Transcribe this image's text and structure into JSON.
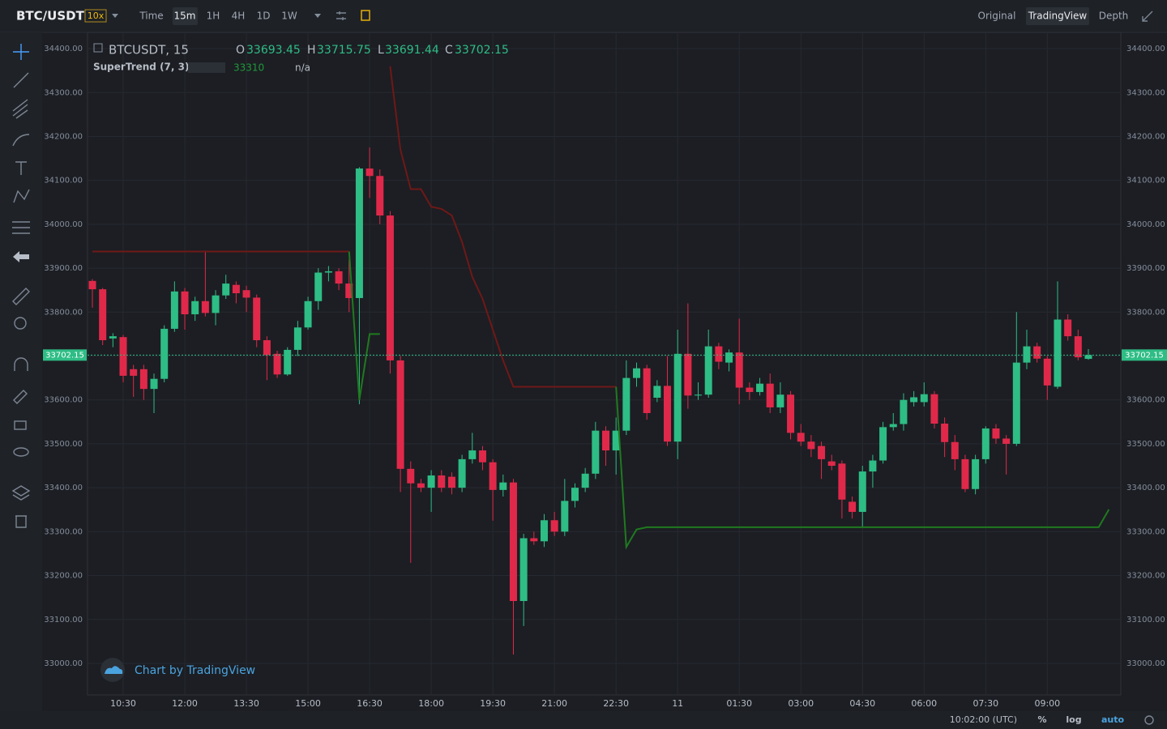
{
  "header": {
    "symbol": "BTC/USDT",
    "leverage": "10x",
    "intervals": [
      "Time",
      "15m",
      "1H",
      "4H",
      "1D",
      "1W"
    ],
    "views": [
      "Original",
      "TradingView",
      "Depth"
    ]
  },
  "footer": {
    "time": "10:02:00 (UTC)",
    "options": [
      "%",
      "log",
      "auto"
    ]
  },
  "watermark": "Chart by TradingView",
  "chart_data": {
    "type": "candlestick",
    "title": "BTCUSDT, 15",
    "ohlc_labels": [
      "O",
      "H",
      "L",
      "C"
    ],
    "up_color": "#2ebd85",
    "down_color": "#e0294a",
    "grid": true,
    "ylim": [
      32928,
      34437
    ],
    "yticks": [
      {
        "value": 33000,
        "label": "33000.00"
      },
      {
        "value": 33100,
        "label": "33100.00"
      },
      {
        "value": 33200,
        "label": "33200.00"
      },
      {
        "value": 33300,
        "label": "33300.00"
      },
      {
        "value": 33400,
        "label": "33400.00"
      },
      {
        "value": 33500,
        "label": "33500.00"
      },
      {
        "value": 33600,
        "label": "33600.00"
      },
      {
        "value": 33700,
        "label": "33700.00"
      },
      {
        "value": 33800,
        "label": "33800.00"
      },
      {
        "value": 33900,
        "label": "33900.00"
      },
      {
        "value": 34000,
        "label": "34000.00"
      },
      {
        "value": 34100,
        "label": "34100.00"
      },
      {
        "value": 34200,
        "label": "34200.00"
      },
      {
        "value": 34300,
        "label": "34300.00"
      },
      {
        "value": 34400,
        "label": "34400.00"
      }
    ],
    "categories": [
      null,
      null,
      null,
      "10:30",
      null,
      null,
      null,
      null,
      null,
      "12:00",
      null,
      null,
      null,
      null,
      null,
      "13:30",
      null,
      null,
      null,
      null,
      null,
      "15:00",
      null,
      null,
      null,
      null,
      null,
      "16:30",
      null,
      null,
      null,
      null,
      null,
      "18:00",
      null,
      null,
      null,
      null,
      null,
      "19:30",
      null,
      null,
      null,
      null,
      null,
      "21:00",
      null,
      null,
      null,
      null,
      null,
      "22:30",
      null,
      null,
      null,
      null,
      null,
      "11",
      null,
      null,
      null,
      null,
      null,
      "01:30",
      null,
      null,
      null,
      null,
      null,
      "03:00",
      null,
      null,
      null,
      null,
      null,
      "04:30",
      null,
      null,
      null,
      null,
      null,
      "06:00",
      null,
      null,
      null,
      null,
      null,
      "07:30",
      null,
      null,
      null,
      null,
      null,
      "09:00",
      null,
      null,
      null,
      null
    ],
    "open": [
      33871,
      33852,
      33740,
      33743,
      33670,
      33670,
      33625,
      33648,
      33762,
      33847,
      33795,
      33825,
      33798,
      33838,
      33862,
      33850,
      33833,
      33736,
      33705,
      33658,
      33714,
      33765,
      33825,
      33890,
      33893,
      33865,
      33832,
      34127,
      34110,
      34020,
      33690,
      33443,
      33410,
      33400,
      33428,
      33425,
      33400,
      33465,
      33485,
      33458,
      33395,
      33412,
      33142,
      33285,
      33278,
      33326,
      33300,
      33370,
      33400,
      33432,
      33530,
      33485,
      33530,
      33650,
      33672,
      33605,
      33632,
      33505,
      33705,
      33610,
      33612,
      33722,
      33685,
      33708,
      33628,
      33618,
      33637,
      33583,
      33612,
      33525,
      33505,
      33495,
      33460,
      33455,
      33368,
      33345,
      33437,
      33462,
      33538,
      33545,
      33595,
      33595,
      33613,
      33546,
      33504,
      33465,
      33397,
      33465,
      33535,
      33512,
      33500,
      33685,
      33722,
      33694,
      33630,
      33783,
      33745,
      33693.45
    ],
    "high": [
      33875,
      33855,
      33752,
      33748,
      33680,
      33680,
      33660,
      33770,
      33870,
      33855,
      33835,
      33940,
      33850,
      33885,
      33870,
      33860,
      33840,
      33745,
      33712,
      33720,
      33780,
      33835,
      33900,
      33905,
      33900,
      33920,
      34130,
      34175,
      34125,
      34030,
      33700,
      33460,
      33420,
      33440,
      33440,
      33435,
      33475,
      33525,
      33495,
      33465,
      33430,
      33420,
      33295,
      33300,
      33340,
      33345,
      33420,
      33410,
      33445,
      33550,
      33540,
      33560,
      33690,
      33685,
      33680,
      33645,
      33700,
      33760,
      33820,
      33640,
      33760,
      33730,
      33715,
      33785,
      33640,
      33650,
      33660,
      33640,
      33620,
      33545,
      33520,
      33505,
      33475,
      33462,
      33380,
      33450,
      33475,
      33550,
      33570,
      33615,
      33620,
      33640,
      33620,
      33560,
      33520,
      33475,
      33475,
      33540,
      33545,
      33520,
      33800,
      33760,
      33730,
      33700,
      33870,
      33795,
      33760,
      33715.75
    ],
    "low": [
      33810,
      33725,
      33720,
      33640,
      33607,
      33600,
      33570,
      33640,
      33755,
      33760,
      33780,
      33790,
      33770,
      33830,
      33820,
      33800,
      33720,
      33645,
      33650,
      33655,
      33700,
      33760,
      33805,
      33870,
      33850,
      33800,
      33590,
      34060,
      34000,
      33660,
      33390,
      33229,
      33390,
      33345,
      33390,
      33385,
      33390,
      33455,
      33440,
      33325,
      33380,
      33020,
      33085,
      33270,
      33265,
      33290,
      33290,
      33355,
      33390,
      33420,
      33450,
      33430,
      33520,
      33630,
      33555,
      33595,
      33495,
      33465,
      33580,
      33600,
      33605,
      33670,
      33665,
      33590,
      33600,
      33610,
      33570,
      33570,
      33510,
      33495,
      33470,
      33420,
      33440,
      33330,
      33330,
      33310,
      33400,
      33455,
      33530,
      33530,
      33585,
      33585,
      33535,
      33470,
      33440,
      33390,
      33385,
      33455,
      33500,
      33430,
      33495,
      33670,
      33685,
      33600,
      33625,
      33735,
      33690,
      33691.44
    ],
    "close": [
      33852,
      33736,
      33745,
      33655,
      33655,
      33625,
      33648,
      33762,
      33847,
      33795,
      33825,
      33798,
      33838,
      33865,
      33843,
      33833,
      33736,
      33702,
      33658,
      33714,
      33765,
      33825,
      33890,
      33893,
      33865,
      33832,
      34127,
      34110,
      34020,
      33690,
      33443,
      33410,
      33400,
      33428,
      33400,
      33400,
      33465,
      33485,
      33458,
      33395,
      33412,
      33142,
      33285,
      33278,
      33326,
      33300,
      33370,
      33400,
      33432,
      33530,
      33485,
      33530,
      33650,
      33672,
      33570,
      33632,
      33505,
      33705,
      33610,
      33612,
      33722,
      33687,
      33708,
      33628,
      33618,
      33637,
      33583,
      33612,
      33525,
      33505,
      33488,
      33465,
      33450,
      33373,
      33345,
      33437,
      33462,
      33538,
      33545,
      33600,
      33606,
      33613,
      33546,
      33504,
      33465,
      33397,
      33465,
      33535,
      33512,
      33500,
      33685,
      33722,
      33694,
      33633,
      33783,
      33745,
      33697,
      33702.15
    ],
    "supertrend": {
      "name": "SuperTrend (7, 3)",
      "na": "n/a",
      "up": {
        "color": "#1f7a1f",
        "values": [
          null,
          null,
          null,
          null,
          null,
          null,
          null,
          null,
          null,
          null,
          null,
          null,
          null,
          null,
          null,
          null,
          null,
          null,
          null,
          null,
          null,
          null,
          null,
          null,
          null,
          33938,
          33600,
          33750,
          33750,
          null,
          null,
          null,
          null,
          null,
          null,
          null,
          null,
          null,
          null,
          null,
          null,
          null,
          null,
          null,
          null,
          null,
          null,
          null,
          null,
          null,
          null,
          33630,
          33265,
          33305,
          33310,
          33310,
          33310,
          33310,
          33310,
          33310,
          33310,
          33310,
          33310,
          33310,
          33310,
          33310,
          33310,
          33310,
          33310,
          33310,
          33310,
          33310,
          33310,
          33310,
          33310,
          33310,
          33310,
          33310,
          33310,
          33310,
          33310,
          33310,
          33310,
          33310,
          33310,
          33310,
          33310,
          33310,
          33310,
          33310,
          33310,
          33310,
          33310,
          33310,
          33310,
          33310,
          33310,
          33310,
          33310,
          33350.3579
        ]
      },
      "down": {
        "color": "#701818",
        "values": [
          33938,
          33938,
          33938,
          33938,
          33938,
          33938,
          33938,
          33938,
          33938,
          33938,
          33938,
          33938,
          33938,
          33938,
          33938,
          33938,
          33938,
          33938,
          33938,
          33938,
          33938,
          33938,
          33938,
          33938,
          33938,
          33938,
          null,
          null,
          null,
          34360,
          34170,
          34080,
          34080,
          34040,
          34035,
          34020,
          33960,
          33880,
          33830,
          33760,
          33690,
          33630,
          33630,
          33630,
          33630,
          33630,
          33630,
          33630,
          33630,
          33630,
          33630,
          33630,
          null,
          null,
          null,
          null,
          null,
          null,
          null,
          null,
          null,
          null,
          null,
          null,
          null,
          null,
          null,
          null,
          null,
          null,
          null,
          null,
          null,
          null,
          null,
          null,
          null,
          null,
          null,
          null,
          null,
          null,
          null,
          null,
          null,
          null,
          null,
          null,
          null,
          null,
          null,
          null,
          null,
          null,
          null,
          null,
          null,
          null
        ]
      }
    }
  }
}
